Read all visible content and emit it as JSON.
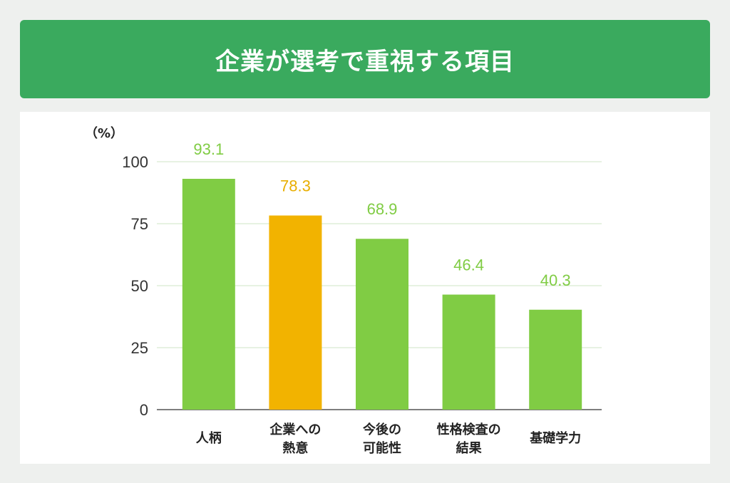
{
  "header": {
    "title": "企業が選考で重視する項目"
  },
  "colors": {
    "header_bg": "#3aaa5e",
    "bar_default": "#80cc44",
    "bar_highlight": "#f2b300",
    "label_default": "#80cc44",
    "label_highlight": "#e8ae00",
    "grid": "#cfe6c4",
    "axis": "#555555"
  },
  "chart_data": {
    "type": "bar",
    "title": "企業が選考で重視する項目",
    "ylabel": "（%）",
    "xlabel": "",
    "ylim": [
      0,
      100
    ],
    "yticks": [
      0,
      25,
      50,
      75,
      100
    ],
    "grid": true,
    "categories": [
      [
        "人柄"
      ],
      [
        "企業への",
        "熱意"
      ],
      [
        "今後の",
        "可能性"
      ],
      [
        "性格検査の",
        "結果"
      ],
      [
        "基礎学力"
      ]
    ],
    "values": [
      93.1,
      78.3,
      68.9,
      46.4,
      40.3
    ],
    "value_labels": [
      "93.1",
      "78.3",
      "68.9",
      "46.4",
      "40.3"
    ],
    "highlight_index": 1
  }
}
